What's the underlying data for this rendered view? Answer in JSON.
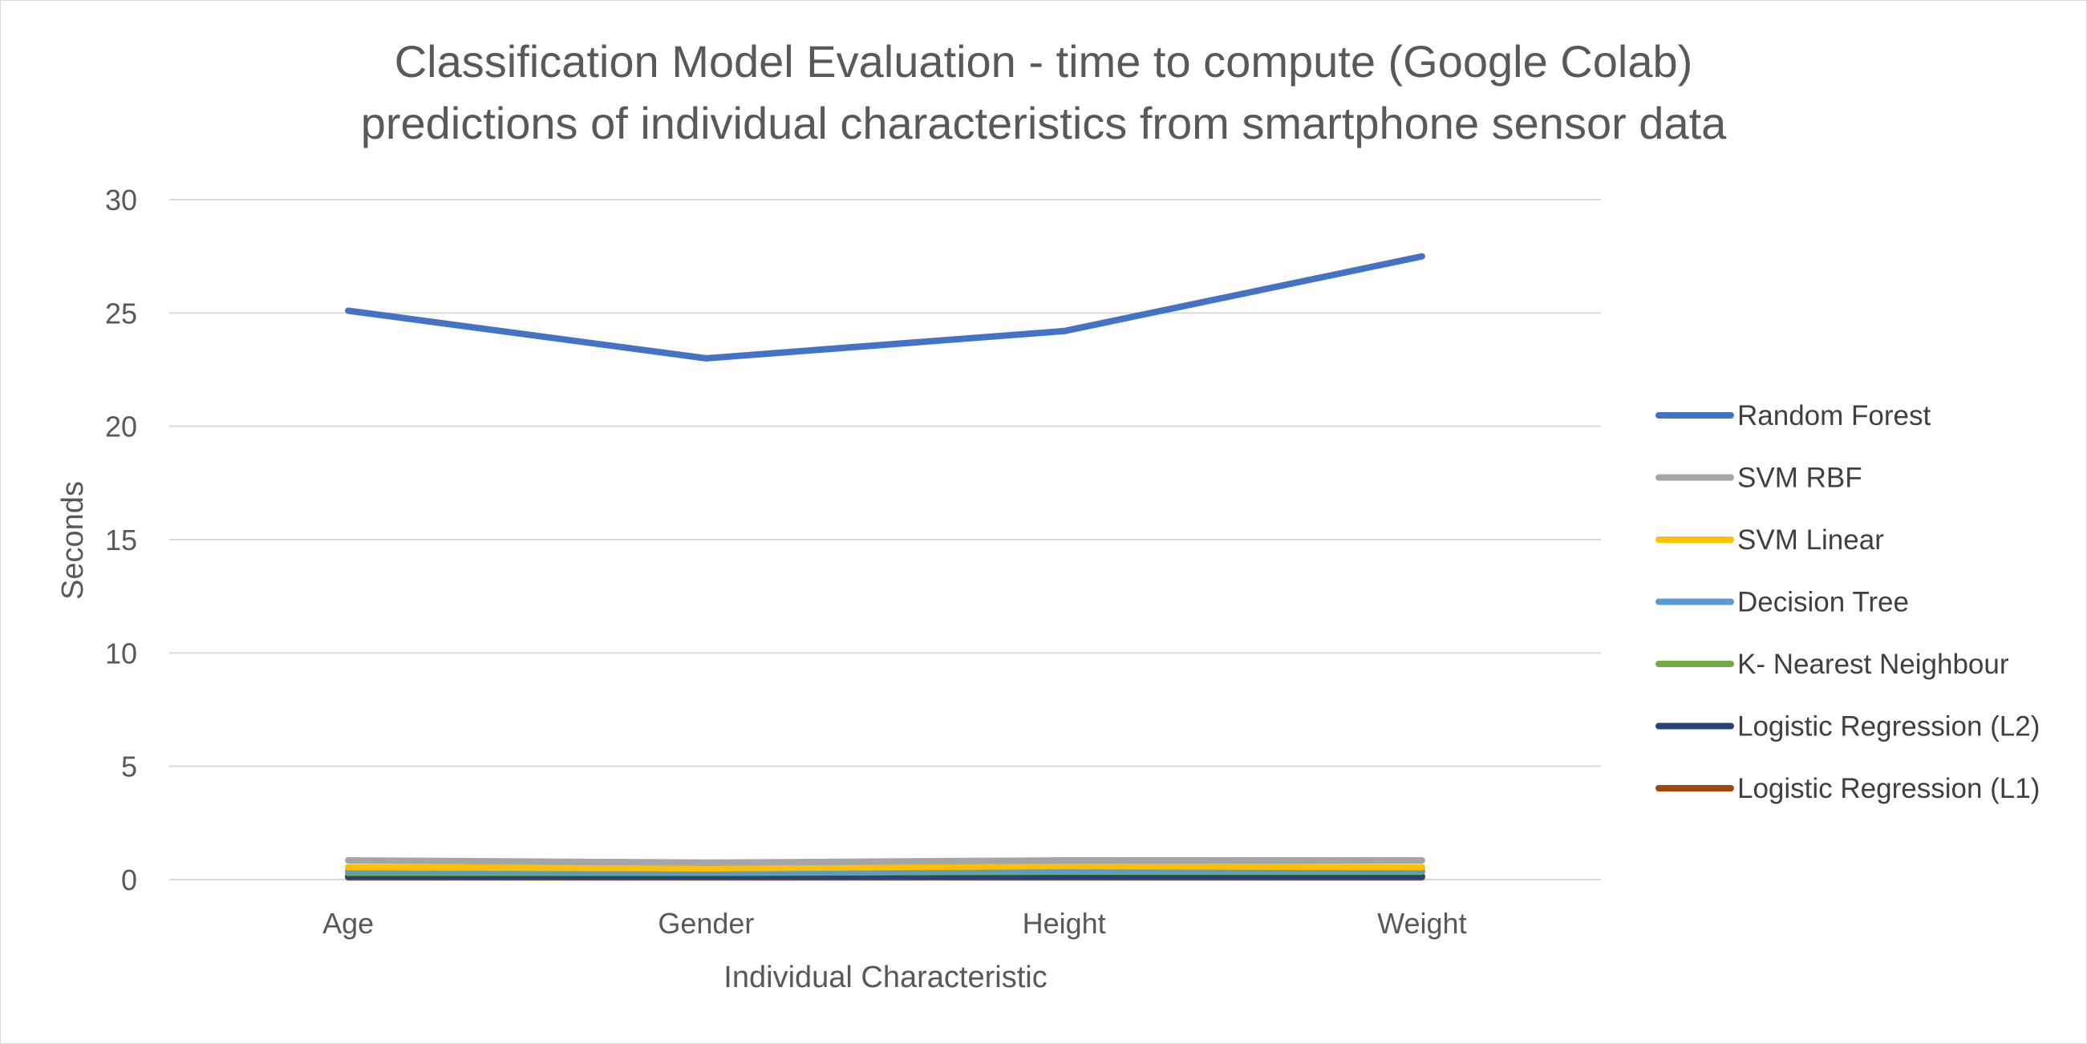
{
  "chart_data": {
    "type": "line",
    "title_lines": [
      "Classification Model Evaluation - time to compute (Google Colab)",
      "predictions of individual characteristics from smartphone sensor data"
    ],
    "xlabel": "Individual Characteristic",
    "ylabel": "Seconds",
    "categories": [
      "Age",
      "Gender",
      "Height",
      "Weight"
    ],
    "ylim": [
      0,
      30
    ],
    "yticks": [
      0,
      5,
      10,
      15,
      20,
      25,
      30
    ],
    "grid": true,
    "legend_position": "right",
    "series": [
      {
        "name": "Random Forest",
        "color": "#4472c4",
        "values": [
          25.1,
          23.0,
          24.2,
          27.5
        ]
      },
      {
        "name": "SVM RBF",
        "color": "#a5a5a5",
        "values": [
          0.85,
          0.75,
          0.85,
          0.85
        ]
      },
      {
        "name": "SVM Linear",
        "color": "#ffc000",
        "values": [
          0.55,
          0.5,
          0.6,
          0.55
        ]
      },
      {
        "name": "Decision Tree",
        "color": "#5b9bd5",
        "values": [
          0.4,
          0.35,
          0.4,
          0.4
        ]
      },
      {
        "name": "K- Nearest Neighbour",
        "color": "#70ad47",
        "values": [
          0.3,
          0.3,
          0.35,
          0.35
        ]
      },
      {
        "name": "Logistic Regression (L2)",
        "color": "#264478",
        "values": [
          0.15,
          0.15,
          0.15,
          0.15
        ]
      },
      {
        "name": "Logistic Regression (L1)",
        "color": "#9e480e",
        "values": [
          0.1,
          0.1,
          0.1,
          0.1
        ]
      }
    ]
  }
}
